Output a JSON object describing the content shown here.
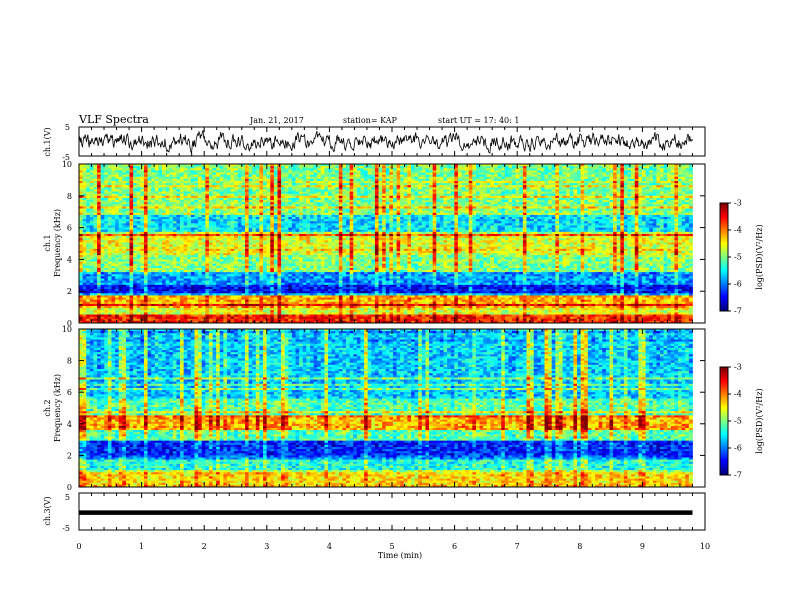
{
  "header": {
    "title": "VLF Spectra",
    "date": "Jan. 21, 2017",
    "station": "station= KAP",
    "start": "start UT = 17: 40: 1"
  },
  "chart_data": [
    {
      "name": "ch1-waveform",
      "type": "line",
      "ylabel": "ch.1(V)",
      "ylim": [
        -5,
        5
      ],
      "y_ticks": [
        "5",
        "-5"
      ],
      "xlim": [
        0,
        10
      ],
      "amplitude_approx_V": 2.5,
      "data_extent_min": 9.8
    },
    {
      "name": "ch1-spectrogram",
      "type": "heatmap",
      "ylabel_lines": [
        "ch.1",
        "Frequency (kHz)"
      ],
      "ylim": [
        0,
        10
      ],
      "y_ticks": [
        "0",
        "2",
        "4",
        "6",
        "8",
        "10"
      ],
      "xlim": [
        0,
        10
      ],
      "color_scale": {
        "label": "log(PSD)(V²/Hz)",
        "range": [
          -7,
          -3
        ],
        "ticks": [
          "-3",
          "-4",
          "-5",
          "-6",
          "-7"
        ]
      },
      "bands_kHz": [
        {
          "from": 0,
          "to": 0.5,
          "level": -3.6
        },
        {
          "from": 0.5,
          "to": 1.0,
          "level": -4.6
        },
        {
          "from": 1.0,
          "to": 1.8,
          "level": -4.2
        },
        {
          "from": 1.8,
          "to": 2.4,
          "level": -6.5
        },
        {
          "from": 2.4,
          "to": 3.2,
          "level": -5.9
        },
        {
          "from": 3.2,
          "to": 4.4,
          "level": -5.0
        },
        {
          "from": 4.4,
          "to": 5.6,
          "level": -4.6
        },
        {
          "from": 5.6,
          "to": 7.0,
          "level": -5.6
        },
        {
          "from": 7.0,
          "to": 10.0,
          "level": -5.0
        }
      ]
    },
    {
      "name": "ch2-spectrogram",
      "type": "heatmap",
      "ylabel_lines": [
        "ch.2",
        "Frequency (kHz)"
      ],
      "ylim": [
        0,
        10
      ],
      "y_ticks": [
        "0",
        "2",
        "4",
        "6",
        "8",
        "10"
      ],
      "xlim": [
        0,
        10
      ],
      "color_scale": {
        "label": "log(PSD)(V²/Hz)",
        "range": [
          -7,
          -3
        ],
        "ticks": [
          "-3",
          "-4",
          "-5",
          "-6",
          "-7"
        ]
      },
      "bands_kHz": [
        {
          "from": 0,
          "to": 1.0,
          "level": -4.4
        },
        {
          "from": 1.0,
          "to": 1.8,
          "level": -5.4
        },
        {
          "from": 1.8,
          "to": 3.0,
          "level": -6.4
        },
        {
          "from": 3.0,
          "to": 3.6,
          "level": -5.2
        },
        {
          "from": 3.6,
          "to": 4.6,
          "level": -4.2
        },
        {
          "from": 4.6,
          "to": 5.6,
          "level": -5.2
        },
        {
          "from": 5.6,
          "to": 10.0,
          "level": -5.7
        }
      ]
    },
    {
      "name": "ch3-waveform",
      "type": "line",
      "ylabel": "ch.3(V)",
      "ylim": [
        -5,
        5
      ],
      "y_ticks": [
        "5",
        "-5"
      ],
      "xlim": [
        0,
        10
      ],
      "constant_V": -0.3,
      "xlabel": "Time (min)",
      "x_ticks": [
        "0",
        "1",
        "2",
        "3",
        "4",
        "5",
        "6",
        "7",
        "8",
        "9",
        "10"
      ]
    }
  ]
}
